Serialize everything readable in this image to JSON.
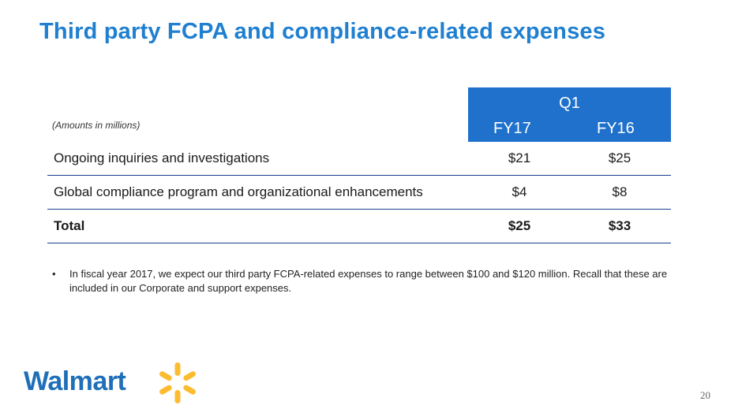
{
  "title": "Third party FCPA and compliance-related expenses",
  "table": {
    "note": "(Amounts in millions)",
    "period": "Q1",
    "columns": [
      "FY17",
      "FY16"
    ],
    "rows": [
      {
        "label": "Ongoing inquiries and investigations",
        "fy17": "$21",
        "fy16": "$25"
      },
      {
        "label": "Global compliance program and organizational enhancements",
        "fy17": "$4",
        "fy16": "$8"
      },
      {
        "label": "Total",
        "fy17": "$25",
        "fy16": "$33"
      }
    ]
  },
  "bullet": "In fiscal year 2017, we expect our third party FCPA-related expenses to range between $100 and $120 million. Recall that these are included in our Corporate and support expenses.",
  "logo": {
    "text": "Walmart",
    "icon": "spark-icon",
    "spark_color": "#fdbb30",
    "text_color": "#1f6fb8"
  },
  "page_number": "20",
  "colors": {
    "title": "#1f7fd0",
    "header_bg": "#1f71cc",
    "rule": "#1d3f8f"
  }
}
